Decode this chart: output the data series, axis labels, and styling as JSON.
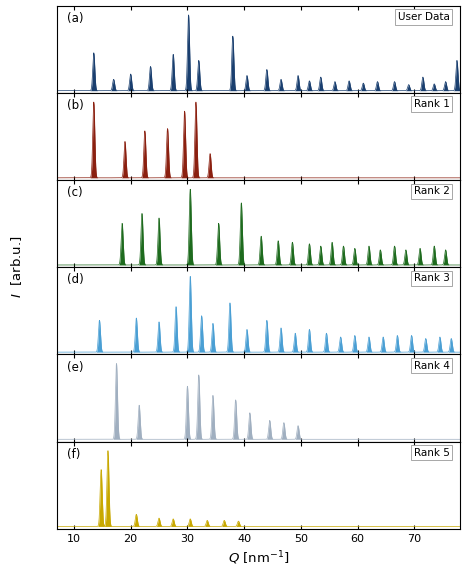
{
  "panels": [
    {
      "label": "(a)",
      "tag": "User Data",
      "color": "#1a3f6f",
      "pattern": "user_data"
    },
    {
      "label": "(b)",
      "tag": "Rank 1",
      "color": "#8b2010",
      "pattern": "rank1"
    },
    {
      "label": "(c)",
      "tag": "Rank 2",
      "color": "#1e6b1e",
      "pattern": "rank2"
    },
    {
      "label": "(d)",
      "tag": "Rank 3",
      "color": "#4a9fd4",
      "pattern": "rank3"
    },
    {
      "label": "(e)",
      "tag": "Rank 4",
      "color": "#a0afc0",
      "pattern": "rank4"
    },
    {
      "label": "(f)",
      "tag": "Rank 5",
      "color": "#c8a800",
      "pattern": "rank5"
    }
  ],
  "xmin": 7,
  "xmax": 78,
  "xticks": [
    10,
    20,
    30,
    40,
    50,
    60,
    70
  ],
  "bg_color": "#ffffff",
  "sigma": 0.18
}
